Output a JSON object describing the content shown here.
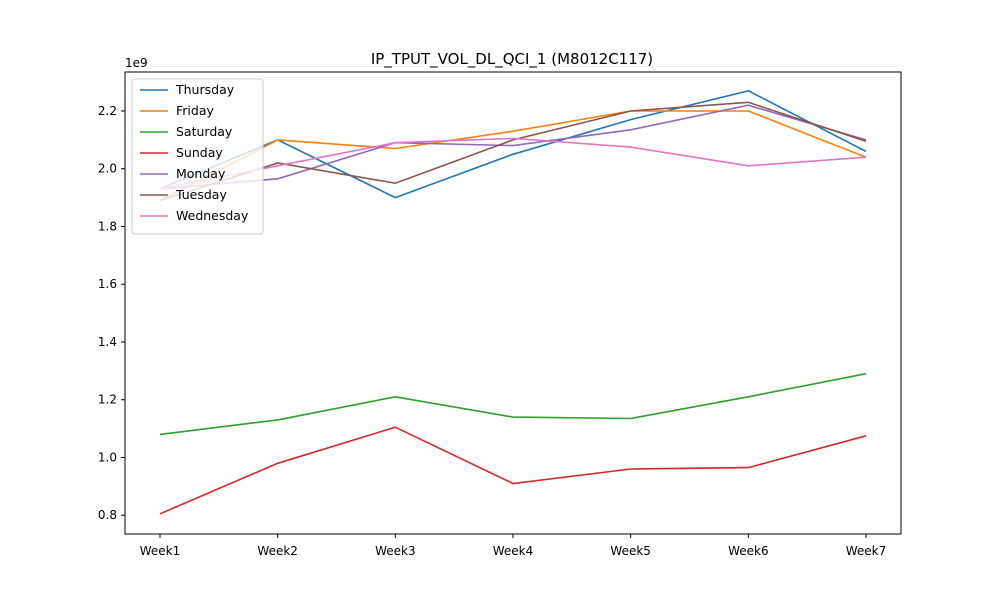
{
  "chart_data": {
    "type": "line",
    "title": "IP_TPUT_VOL_DL_QCI_1 (M8012C117)",
    "xlabel": "",
    "ylabel": "",
    "y_offset_label": "1e9",
    "categories": [
      "Week1",
      "Week2",
      "Week3",
      "Week4",
      "Week5",
      "Week6",
      "Week7"
    ],
    "ylim": [
      0.735,
      2.335
    ],
    "yticks": [
      0.8,
      1.0,
      1.2,
      1.4,
      1.6,
      1.8,
      2.0,
      2.2
    ],
    "ytick_labels": [
      "0.8",
      "1.0",
      "1.2",
      "1.4",
      "1.6",
      "1.8",
      "2.0",
      "2.2"
    ],
    "legend_position": "top-left",
    "grid": false,
    "series": [
      {
        "name": "Thursday",
        "color": "#1f77b4",
        "values": [
          1.93,
          2.1,
          1.9,
          2.05,
          2.17,
          2.27,
          2.06
        ]
      },
      {
        "name": "Friday",
        "color": "#ff7f0e",
        "values": [
          1.89,
          2.1,
          2.07,
          2.13,
          2.2,
          2.2,
          2.04
        ]
      },
      {
        "name": "Saturday",
        "color": "#2ca02c",
        "values": [
          1.08,
          1.13,
          1.21,
          1.14,
          1.135,
          1.21,
          1.29
        ]
      },
      {
        "name": "Sunday",
        "color": "#d62728",
        "values": [
          0.805,
          0.98,
          1.105,
          0.91,
          0.96,
          0.965,
          1.075
        ]
      },
      {
        "name": "Monday",
        "color": "#9467bd",
        "values": [
          1.93,
          1.965,
          2.09,
          2.08,
          2.135,
          2.22,
          2.1
        ]
      },
      {
        "name": "Tuesday",
        "color": "#8c564b",
        "values": [
          1.89,
          2.02,
          1.95,
          2.1,
          2.2,
          2.23,
          2.095
        ]
      },
      {
        "name": "Wednesday",
        "color": "#e377c2",
        "values": [
          1.93,
          2.01,
          2.09,
          2.105,
          2.075,
          2.01,
          2.04
        ]
      }
    ]
  }
}
